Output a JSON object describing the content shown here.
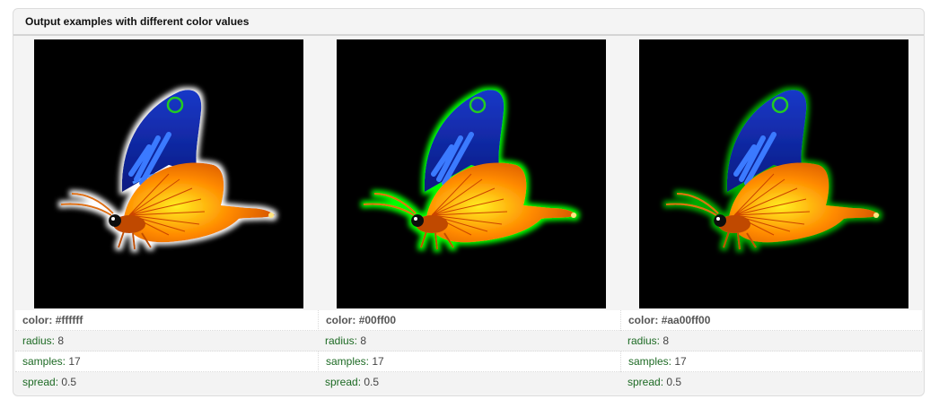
{
  "panel": {
    "title": "Output examples with different color values"
  },
  "examples": [
    {
      "glow_color": "#ffffff",
      "color_label": "color:",
      "color_value": "#ffffff",
      "radius_label": "radius:",
      "radius_value": "8",
      "samples_label": "samples:",
      "samples_value": "17",
      "spread_label": "spread:",
      "spread_value": "0.5"
    },
    {
      "glow_color": "#00ff00",
      "color_label": "color:",
      "color_value": "#00ff00",
      "radius_label": "radius:",
      "radius_value": "8",
      "samples_label": "samples:",
      "samples_value": "17",
      "spread_label": "spread:",
      "spread_value": "0.5"
    },
    {
      "glow_color": "#77dd00",
      "color_label": "color:",
      "color_value": "#aa00ff00",
      "radius_label": "radius:",
      "radius_value": "8",
      "samples_label": "samples:",
      "samples_value": "17",
      "spread_label": "spread:",
      "spread_value": "0.5"
    }
  ]
}
